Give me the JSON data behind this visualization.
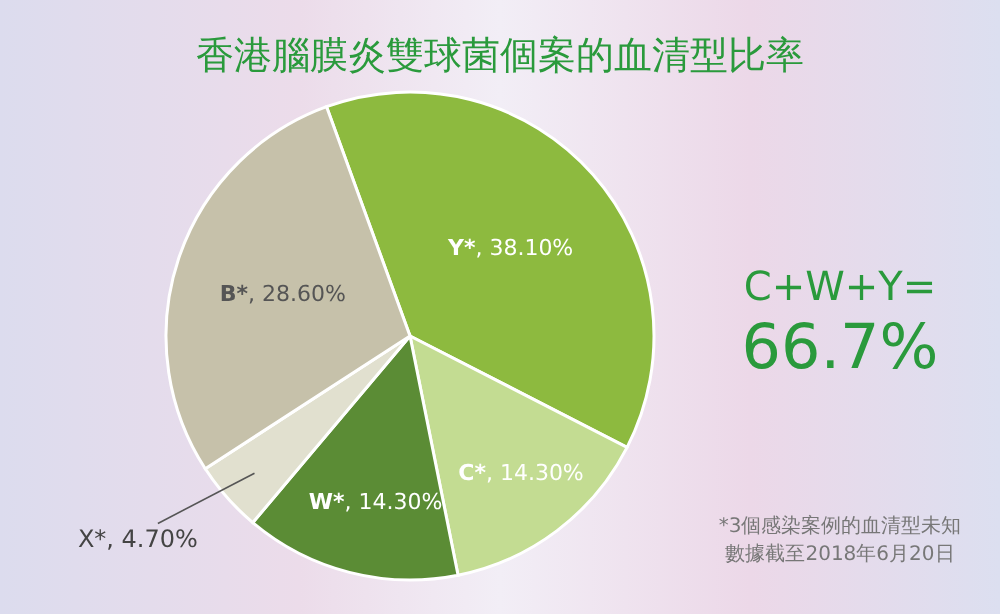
{
  "chart_data": {
    "type": "pie",
    "title": "香港腦膜炎雙球菌個案的血清型比率",
    "categories": [
      "Y*",
      "C*",
      "W*",
      "X*",
      "B*"
    ],
    "values": [
      38.1,
      14.3,
      14.3,
      4.7,
      28.6
    ],
    "value_labels": [
      ", 38.10%",
      ", 14.30%",
      ", 14.30%",
      ", 4.70%",
      ", 28.60%"
    ],
    "colors": [
      "#8dba3f",
      "#c3dc92",
      "#5b8c35",
      "#e1e0cf",
      "#c6c1aa"
    ],
    "annotations": [
      "C+W+Y=",
      "66.7%",
      "*3個感染案例的血清型未知",
      "數據截至2018年6月20日"
    ]
  }
}
